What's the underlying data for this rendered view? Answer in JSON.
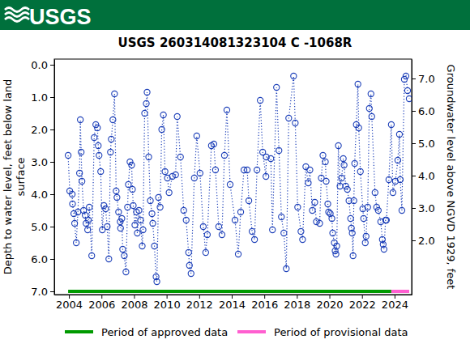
{
  "header": {
    "logo": "USGS"
  },
  "chart_data": {
    "type": "line",
    "title": "USGS 260314081323104 C  -1068R",
    "y_label": "Depth to water level, feet below land surface",
    "y2_label": "Groundwater level above NGVD 1929, feet",
    "xlim": [
      2003.1,
      2025.05
    ],
    "xticks": [
      2004,
      2006,
      2008,
      2010,
      2012,
      2014,
      2016,
      2018,
      2020,
      2022,
      2024
    ],
    "ylim": [
      -0.175,
      7.1
    ],
    "yticks": [
      {
        "value": 0,
        "label": "0.0"
      },
      {
        "value": 1,
        "label": "1.0"
      },
      {
        "value": 2,
        "label": "2.0"
      },
      {
        "value": 3,
        "label": "3.0"
      },
      {
        "value": 4,
        "label": "4.0"
      },
      {
        "value": 5,
        "label": "5.0"
      },
      {
        "value": 6,
        "label": "6.0"
      },
      {
        "value": 7,
        "label": "7.0"
      }
    ],
    "y2lim": [
      0.325,
      7.6
    ],
    "y2ticks": [
      {
        "value": 2,
        "label": "2.0"
      },
      {
        "value": 3,
        "label": "3.0"
      },
      {
        "value": 4,
        "label": "4.0"
      },
      {
        "value": 5,
        "label": "5.0"
      },
      {
        "value": 6,
        "label": "6.0"
      },
      {
        "value": 7,
        "label": "7.0"
      }
    ],
    "grid": false,
    "legend": "bottom",
    "x": [
      2003.95,
      2004.05,
      2004.2,
      2004.22,
      2004.3,
      2004.35,
      2004.45,
      2004.55,
      2004.65,
      2004.7,
      2004.75,
      2004.8,
      2004.9,
      2005.0,
      2005.05,
      2005.15,
      2005.2,
      2005.25,
      2005.4,
      2005.55,
      2005.65,
      2005.75,
      2005.8,
      2005.85,
      2005.95,
      2006.05,
      2006.15,
      2006.25,
      2006.35,
      2006.45,
      2006.55,
      2006.6,
      2006.7,
      2006.8,
      2006.9,
      2006.95,
      2007.05,
      2007.15,
      2007.17,
      2007.25,
      2007.3,
      2007.4,
      2007.5,
      2007.6,
      2007.65,
      2007.75,
      2007.85,
      2007.9,
      2007.95,
      2008.05,
      2008.15,
      2008.2,
      2008.3,
      2008.4,
      2008.5,
      2008.55,
      2008.65,
      2008.75,
      2008.8,
      2008.9,
      2009.0,
      2009.1,
      2009.15,
      2009.25,
      2009.35,
      2009.4,
      2009.5,
      2009.6,
      2009.7,
      2009.8,
      2009.9,
      2010.05,
      2010.15,
      2010.35,
      2010.55,
      2010.65,
      2010.85,
      2011.05,
      2011.2,
      2011.35,
      2011.4,
      2011.5,
      2011.7,
      2011.85,
      2012.05,
      2012.25,
      2012.4,
      2012.5,
      2012.75,
      2012.9,
      2013.0,
      2013.2,
      2013.4,
      2013.55,
      2013.7,
      2013.9,
      2014.2,
      2014.4,
      2014.55,
      2014.75,
      2014.95,
      2015.05,
      2015.25,
      2015.4,
      2015.55,
      2015.75,
      2015.9,
      2016.1,
      2016.12,
      2016.4,
      2016.5,
      2016.75,
      2016.9,
      2017.05,
      2017.2,
      2017.35,
      2017.5,
      2017.8,
      2017.9,
      2018.05,
      2018.25,
      2018.35,
      2018.55,
      2018.7,
      2018.8,
      2018.95,
      2019.1,
      2019.2,
      2019.4,
      2019.5,
      2019.6,
      2019.75,
      2019.8,
      2019.9,
      2019.95,
      2020.05,
      2020.15,
      2020.2,
      2020.3,
      2020.35,
      2020.4,
      2020.45,
      2020.55,
      2020.65,
      2020.75,
      2020.85,
      2020.9,
      2021.0,
      2021.1,
      2021.2,
      2021.3,
      2021.35,
      2021.4,
      2021.45,
      2021.5,
      2021.55,
      2021.65,
      2021.75,
      2021.8,
      2021.9,
      2022.05,
      2022.1,
      2022.2,
      2022.25,
      2022.35,
      2022.45,
      2022.55,
      2022.6,
      2022.8,
      2022.9,
      2023.0,
      2023.15,
      2023.25,
      2023.3,
      2023.35,
      2023.45,
      2023.5,
      2023.65,
      2023.8,
      2023.9,
      2024.05,
      2024.2,
      2024.3,
      2024.35,
      2024.45,
      2024.6,
      2024.7,
      2024.8,
      2024.9
    ],
    "series": [
      {
        "color": "#1c3fb8",
        "marker": "circle",
        "line_style": "dotted",
        "values": [
          2.8,
          3.9,
          4.0,
          4.3,
          4.6,
          4.9,
          5.5,
          4.55,
          3.35,
          1.7,
          2.7,
          3.6,
          4.5,
          4.65,
          4.9,
          5.1,
          4.8,
          4.4,
          5.9,
          2.25,
          1.85,
          1.95,
          2.5,
          2.8,
          3.3,
          5.1,
          4.35,
          4.45,
          5.0,
          6.0,
          2.7,
          2.3,
          1.7,
          0.9,
          3.9,
          4.1,
          4.55,
          4.85,
          5.05,
          4.75,
          5.7,
          5.9,
          6.4,
          4.4,
          3.7,
          3.0,
          3.1,
          3.85,
          4.35,
          4.95,
          4.55,
          5.2,
          4.5,
          4.8,
          5.6,
          5.1,
          1.5,
          1.2,
          0.85,
          2.85,
          4.2,
          4.6,
          4.9,
          5.6,
          6.55,
          6.7,
          4.1,
          4.4,
          2.0,
          1.55,
          3.3,
          3.5,
          3.95,
          3.45,
          3.4,
          1.6,
          2.85,
          4.5,
          4.8,
          5.8,
          6.2,
          6.45,
          3.5,
          2.2,
          3.35,
          5.0,
          5.8,
          5.25,
          2.5,
          2.45,
          3.25,
          5.0,
          5.25,
          2.8,
          1.4,
          3.7,
          4.8,
          5.85,
          4.55,
          3.25,
          3.25,
          4.2,
          5.15,
          5.4,
          3.25,
          1.1,
          2.7,
          3.45,
          2.85,
          2.9,
          5.1,
          0.7,
          2.65,
          4.7,
          5.2,
          6.3,
          1.65,
          0.35,
          1.8,
          4.4,
          5.15,
          5.4,
          3.15,
          3.65,
          3.25,
          4.5,
          4.25,
          4.85,
          4.9,
          3.5,
          2.8,
          3.0,
          3.6,
          4.3,
          4.55,
          4.6,
          4.75,
          5.2,
          5.5,
          5.75,
          5.85,
          5.6,
          2.5,
          3.75,
          3.5,
          2.9,
          3.1,
          3.75,
          3.85,
          4.2,
          4.75,
          5.05,
          5.2,
          5.9,
          4.2,
          3.05,
          1.85,
          0.6,
          1.95,
          3.3,
          4.45,
          4.75,
          5.5,
          5.3,
          4.4,
          1.35,
          0.9,
          1.6,
          3.95,
          4.4,
          4.5,
          4.85,
          5.4,
          5.55,
          5.7,
          4.8,
          4.8,
          3.55,
          1.85,
          3.95,
          3.6,
          2.95,
          2.15,
          3.55,
          4.5,
          0.45,
          0.35,
          0.8,
          1.05
        ]
      }
    ],
    "periods": [
      {
        "name": "Period of approved data",
        "color": "#009a00",
        "start": 2003.95,
        "end": 2023.8,
        "level": 7
      },
      {
        "name": "Period of provisional data",
        "color": "#ff5fd0",
        "start": 2023.8,
        "end": 2024.9,
        "level": 7
      }
    ]
  }
}
